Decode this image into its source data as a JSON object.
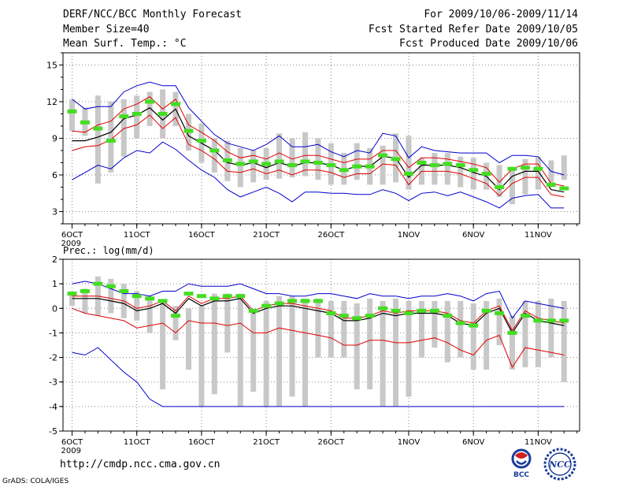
{
  "header": {
    "title": "DERF/NCC/BCC Monthly Forecast",
    "member_size": "Member Size=40",
    "variable": "Mean Surf. Temp.: °C",
    "period": "For 2009/10/06-2009/11/14",
    "fcst_started": "Fcst Started Refer Date 2009/10/05",
    "fcst_produced": "Fcst Produced Date 2009/10/06"
  },
  "footer": {
    "url": "http://cmdp.ncc.cma.gov.cn",
    "credit": "GrADS: COLA/IGES",
    "logo_bcc": "BCC",
    "logo_ncc": "NCC"
  },
  "colors": {
    "mean": "#000000",
    "spread": "#e00000",
    "extreme": "#0000cc",
    "median": "#44dd22",
    "box": "#c8c8c8",
    "grid": "#888888"
  },
  "chart_data": [
    {
      "id": "temperature",
      "type": "box-ensemble",
      "title": "",
      "ylabel": "Mean Surf. Temp.: °C",
      "ylim": [
        2,
        16
      ],
      "yticks": [
        3,
        6,
        9,
        12,
        15
      ],
      "xlim": [
        5.3,
        45.2
      ],
      "day": [
        6,
        7,
        8,
        9,
        10,
        11,
        12,
        13,
        14,
        15,
        16,
        17,
        18,
        19,
        20,
        21,
        22,
        23,
        24,
        25,
        26,
        27,
        28,
        29,
        30,
        31,
        32,
        33,
        34,
        35,
        36,
        37,
        38,
        39,
        40,
        41,
        42,
        43,
        44
      ],
      "xticks": [
        {
          "day": 6,
          "label": "6OCT"
        },
        {
          "day": 11,
          "label": "11OCT"
        },
        {
          "day": 16,
          "label": "16OCT"
        },
        {
          "day": 21,
          "label": "21OCT"
        },
        {
          "day": 26,
          "label": "26OCT"
        },
        {
          "day": 32,
          "label": "1NOV"
        },
        {
          "day": 37,
          "label": "6NOV"
        },
        {
          "day": 42,
          "label": "11NOV"
        }
      ],
      "year_label": "2009",
      "box_low": [
        9.6,
        9.2,
        5.3,
        6.2,
        7.5,
        9.0,
        10.0,
        9.0,
        10.0,
        8.0,
        7.0,
        6.2,
        5.5,
        5.0,
        5.4,
        5.6,
        5.7,
        5.8,
        5.9,
        5.6,
        5.2,
        5.2,
        5.6,
        5.2,
        5.2,
        5.4,
        4.8,
        5.2,
        5.2,
        5.2,
        5.0,
        4.8,
        4.8,
        4.2,
        3.6,
        4.4,
        4.8,
        5.0,
        5.6
      ],
      "box_high": [
        12.2,
        11.5,
        12.5,
        12.0,
        12.2,
        12.5,
        12.8,
        13.0,
        12.8,
        11.0,
        10.2,
        9.0,
        8.8,
        8.2,
        8.0,
        8.2,
        9.4,
        9.0,
        9.5,
        9.0,
        8.6,
        7.8,
        8.6,
        8.2,
        8.4,
        9.4,
        9.2,
        7.4,
        7.8,
        7.8,
        7.5,
        7.4,
        7.0,
        6.8,
        6.4,
        7.3,
        7.5,
        7.2,
        7.6
      ],
      "median": [
        11.2,
        10.3,
        9.8,
        8.8,
        10.8,
        11.0,
        12.0,
        11.0,
        11.8,
        9.6,
        8.8,
        8.0,
        7.2,
        6.9,
        7.1,
        6.9,
        7.1,
        6.8,
        7.1,
        7.0,
        6.8,
        6.4,
        6.7,
        6.7,
        7.6,
        7.3,
        6.1,
        7.0,
        6.8,
        6.9,
        6.8,
        6.4,
        6.1,
        5.0,
        6.5,
        6.6,
        6.5,
        5.2,
        4.9
      ],
      "mean": [
        8.8,
        8.8,
        9.1,
        9.5,
        10.6,
        10.9,
        11.5,
        10.5,
        11.4,
        9.2,
        8.6,
        8.0,
        7.0,
        6.8,
        7.0,
        6.6,
        7.0,
        6.7,
        7.0,
        7.0,
        6.8,
        6.4,
        6.7,
        6.7,
        7.5,
        7.4,
        5.8,
        6.8,
        6.8,
        6.8,
        6.6,
        6.2,
        5.9,
        4.8,
        5.9,
        6.3,
        6.3,
        4.8,
        4.6
      ],
      "spread_high": [
        9.6,
        9.5,
        10.1,
        10.4,
        11.4,
        11.8,
        12.4,
        11.4,
        12.2,
        10.1,
        9.5,
        8.8,
        7.9,
        7.4,
        7.6,
        7.3,
        7.8,
        7.3,
        7.6,
        7.6,
        7.3,
        7.0,
        7.3,
        7.3,
        8.0,
        8.0,
        6.6,
        7.4,
        7.4,
        7.3,
        7.1,
        6.9,
        6.6,
        5.4,
        6.5,
        6.9,
        6.9,
        5.3,
        5.1
      ],
      "spread_low": [
        8.0,
        8.3,
        8.4,
        8.9,
        9.8,
        10.1,
        10.9,
        9.8,
        10.7,
        8.5,
        8.0,
        7.3,
        6.3,
        6.2,
        6.5,
        6.1,
        6.4,
        6.0,
        6.4,
        6.4,
        6.2,
        5.8,
        6.1,
        6.1,
        6.9,
        6.8,
        5.2,
        6.3,
        6.3,
        6.3,
        6.1,
        5.7,
        5.3,
        4.3,
        5.3,
        5.8,
        5.8,
        4.4,
        4.2
      ],
      "max": [
        12.2,
        11.4,
        11.6,
        11.6,
        12.8,
        13.3,
        13.6,
        13.3,
        13.3,
        11.5,
        10.4,
        9.3,
        8.6,
        8.3,
        8.0,
        8.5,
        9.2,
        8.3,
        8.3,
        8.5,
        7.9,
        7.5,
        8.0,
        7.8,
        9.4,
        9.2,
        7.4,
        8.3,
        8.0,
        7.9,
        7.8,
        7.8,
        7.8,
        7.0,
        7.6,
        7.6,
        7.5,
        6.3,
        6.0
      ],
      "min": [
        5.6,
        6.2,
        6.8,
        6.5,
        7.4,
        8.0,
        7.8,
        8.7,
        8.1,
        7.2,
        6.4,
        5.8,
        4.8,
        4.2,
        4.6,
        5.0,
        4.5,
        3.8,
        4.6,
        4.6,
        4.5,
        4.5,
        4.4,
        4.4,
        4.8,
        4.5,
        3.9,
        4.5,
        4.6,
        4.3,
        4.6,
        4.2,
        3.8,
        3.3,
        4.1,
        4.3,
        4.4,
        3.3,
        3.3
      ]
    },
    {
      "id": "precipitation",
      "type": "box-ensemble",
      "title": "Prec.: log(mm/d)",
      "ylabel": "Prec.: log(mm/d)",
      "ylim": [
        -5,
        2
      ],
      "yticks": [
        -5,
        -4,
        -3,
        -2,
        -1,
        0,
        1,
        2
      ],
      "xlim": [
        5.3,
        45.2
      ],
      "day": [
        6,
        7,
        8,
        9,
        10,
        11,
        12,
        13,
        14,
        15,
        16,
        17,
        18,
        19,
        20,
        21,
        22,
        23,
        24,
        25,
        26,
        27,
        28,
        29,
        30,
        31,
        32,
        33,
        34,
        35,
        36,
        37,
        38,
        39,
        40,
        41,
        42,
        43,
        44
      ],
      "xticks": [
        {
          "day": 6,
          "label": "6OCT"
        },
        {
          "day": 11,
          "label": "11OCT"
        },
        {
          "day": 16,
          "label": "16OCT"
        },
        {
          "day": 21,
          "label": "21OCT"
        },
        {
          "day": 26,
          "label": "26OCT"
        },
        {
          "day": 32,
          "label": "1NOV"
        },
        {
          "day": 37,
          "label": "6NOV"
        },
        {
          "day": 42,
          "label": "11NOV"
        }
      ],
      "year_label": "2009",
      "box_low": [
        0.1,
        -0.2,
        -0.3,
        -0.2,
        -0.4,
        -0.5,
        -1.0,
        -3.3,
        -1.3,
        -2.5,
        -4.0,
        -3.5,
        -1.8,
        -4.0,
        -3.4,
        -4.0,
        -4.0,
        -3.6,
        -4.0,
        -2.0,
        -2.0,
        -2.0,
        -3.3,
        -3.3,
        -4.0,
        -4.0,
        -3.6,
        -2.0,
        -1.6,
        -2.2,
        -2.0,
        -2.5,
        -2.5,
        -1.5,
        -2.5,
        -2.4,
        -2.4,
        -2.0,
        -3.0
      ],
      "box_high": [
        0.6,
        0.8,
        1.3,
        1.2,
        1.0,
        0.7,
        0.5,
        0.3,
        0.1,
        0.0,
        0.1,
        0.6,
        0.6,
        0.6,
        -0.1,
        0.3,
        0.5,
        0.5,
        0.4,
        0.4,
        0.3,
        0.3,
        0.2,
        0.4,
        0.3,
        0.4,
        0.3,
        0.3,
        0.3,
        0.3,
        0.3,
        0.2,
        0.3,
        0.4,
        -0.3,
        0.3,
        0.3,
        0.4,
        0.3
      ],
      "median": [
        0.6,
        0.7,
        1.0,
        0.9,
        0.7,
        0.5,
        0.4,
        0.3,
        -0.3,
        0.6,
        0.5,
        0.4,
        0.5,
        0.5,
        -0.1,
        0.1,
        0.2,
        0.3,
        0.3,
        0.3,
        -0.2,
        -0.3,
        -0.4,
        -0.3,
        0.0,
        -0.1,
        -0.2,
        -0.1,
        -0.1,
        -0.3,
        -0.6,
        -0.7,
        -0.1,
        -0.2,
        -1.0,
        -0.3,
        -0.5,
        -0.5,
        -0.5
      ],
      "mean": [
        0.4,
        0.4,
        0.4,
        0.3,
        0.2,
        -0.1,
        0.0,
        0.2,
        -0.2,
        0.4,
        0.1,
        0.3,
        0.3,
        0.4,
        -0.2,
        0.0,
        0.1,
        0.1,
        0.0,
        -0.1,
        -0.2,
        -0.5,
        -0.5,
        -0.4,
        -0.2,
        -0.3,
        -0.2,
        -0.2,
        -0.2,
        -0.3,
        -0.6,
        -0.7,
        -0.2,
        0.0,
        -1.0,
        -0.2,
        -0.5,
        -0.6,
        -0.7
      ],
      "spread_high": [
        0.5,
        0.5,
        0.5,
        0.4,
        0.3,
        0.0,
        0.1,
        0.3,
        -0.1,
        0.5,
        0.2,
        0.4,
        0.4,
        0.5,
        -0.1,
        0.1,
        0.2,
        0.2,
        0.1,
        0.0,
        -0.1,
        -0.4,
        -0.4,
        -0.3,
        -0.1,
        -0.2,
        -0.1,
        -0.1,
        -0.1,
        -0.2,
        -0.5,
        -0.6,
        -0.1,
        0.1,
        -0.9,
        -0.1,
        -0.4,
        -0.5,
        -0.6
      ],
      "spread_low": [
        0.0,
        -0.2,
        -0.3,
        -0.4,
        -0.5,
        -0.8,
        -0.7,
        -0.6,
        -1.0,
        -0.5,
        -0.6,
        -0.6,
        -0.7,
        -0.6,
        -1.0,
        -1.0,
        -0.8,
        -0.9,
        -1.0,
        -1.1,
        -1.2,
        -1.5,
        -1.5,
        -1.3,
        -1.3,
        -1.4,
        -1.4,
        -1.3,
        -1.2,
        -1.4,
        -1.7,
        -1.9,
        -1.3,
        -1.1,
        -2.4,
        -1.6,
        -1.7,
        -1.8,
        -1.9
      ],
      "max": [
        1.0,
        1.1,
        1.0,
        0.8,
        0.6,
        0.6,
        0.5,
        0.7,
        0.7,
        1.0,
        0.9,
        0.9,
        0.9,
        1.0,
        0.8,
        0.6,
        0.6,
        0.5,
        0.5,
        0.6,
        0.6,
        0.5,
        0.4,
        0.6,
        0.5,
        0.5,
        0.4,
        0.5,
        0.5,
        0.6,
        0.5,
        0.3,
        0.6,
        0.7,
        -0.4,
        0.3,
        0.2,
        0.1,
        0.0
      ],
      "min": [
        -1.8,
        -1.9,
        -1.6,
        -2.1,
        -2.6,
        -3.0,
        -3.7,
        -4.0,
        -4.0,
        -4.0,
        -4.0,
        -4.0,
        -4.0,
        -4.0,
        -4.0,
        -4.0,
        -4.0,
        -4.0,
        -4.0,
        -4.0,
        -4.0,
        -4.0,
        -4.0,
        -4.0,
        -4.0,
        -4.0,
        -4.0,
        -4.0,
        -4.0,
        -4.0,
        -4.0,
        -4.0,
        -4.0,
        -4.0,
        -4.0,
        -4.0,
        -4.0,
        -4.0,
        -4.0
      ]
    }
  ]
}
